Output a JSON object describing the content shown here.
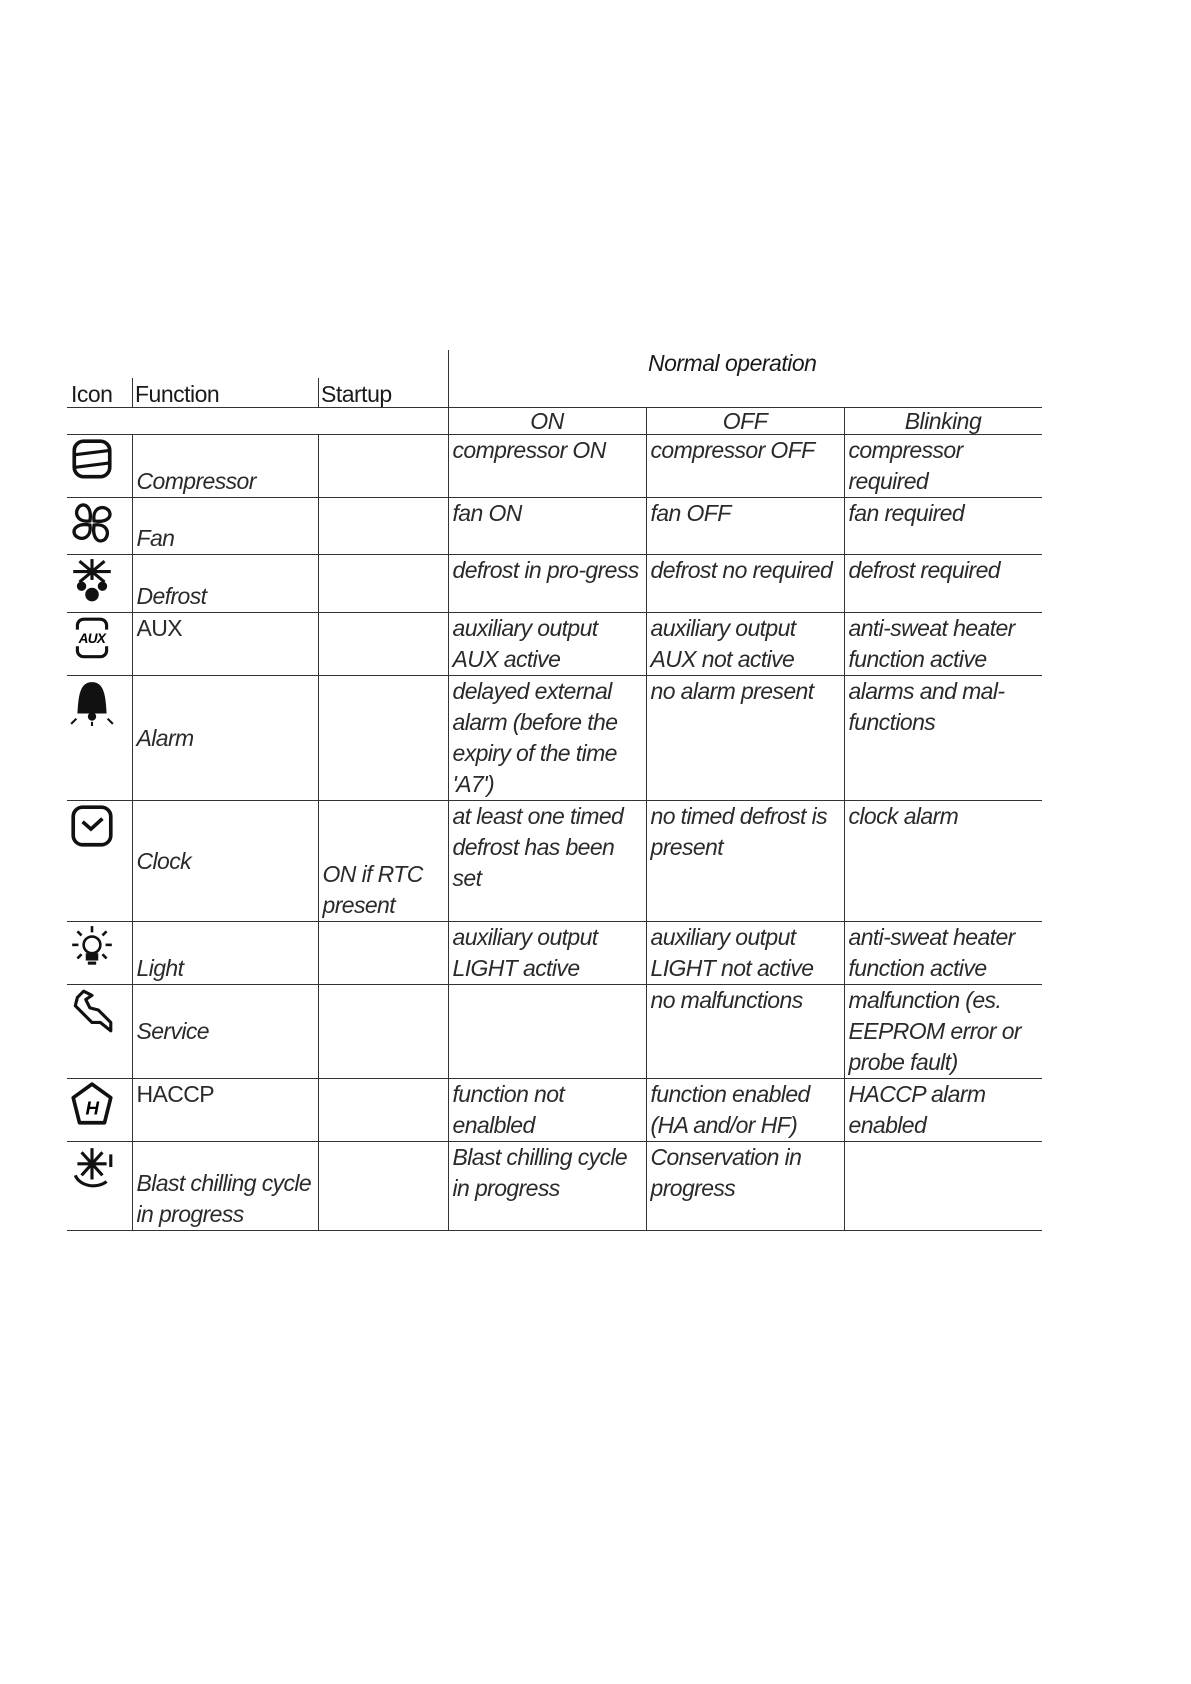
{
  "header": {
    "icon": "Icon",
    "function": "Function",
    "startup": "Startup",
    "normal_operation": "Normal operation",
    "on": "ON",
    "off": "OFF",
    "blinking": "Blinking"
  },
  "rows": [
    {
      "icon": "compressor-icon",
      "function": "Compressor",
      "startup": "",
      "on": "compressor ON",
      "off": "compressor OFF",
      "blinking": "compressor required"
    },
    {
      "icon": "fan-icon",
      "function": "Fan",
      "startup": "",
      "on": "fan ON",
      "off": "fan OFF",
      "blinking": "fan required"
    },
    {
      "icon": "defrost-icon",
      "function": "Defrost",
      "startup": "",
      "on": "defrost in pro-gress",
      "off": "defrost no required",
      "blinking": "defrost required"
    },
    {
      "icon": "aux-icon",
      "function": "AUX",
      "startup": "",
      "on": "auxiliary output AUX active",
      "off": "auxiliary output AUX not active",
      "blinking": " anti-sweat heater function active"
    },
    {
      "icon": "alarm-bell-icon",
      "function": "Alarm",
      "startup": "",
      "on": "delayed external alarm (before the expiry of the time 'A7')",
      "off": "no alarm present",
      "blinking": "alarms and mal-functions"
    },
    {
      "icon": "clock-icon",
      "function": "Clock",
      "startup": "ON if RTC present",
      "on": "at least one timed defrost has been set",
      "off": "no timed defrost is present",
      "blinking": "clock alarm"
    },
    {
      "icon": "light-bulb-icon",
      "function": "Light",
      "startup": "",
      "on": "auxiliary output LIGHT active",
      "off": "auxiliary output LIGHT not active",
      "blinking": " anti-sweat heater function active"
    },
    {
      "icon": "wrench-icon",
      "function": "Service",
      "startup": "",
      "on": "",
      "off": "no malfunctions",
      "blinking": "malfunction (es. EEPROM error or probe fault)"
    },
    {
      "icon": "haccp-icon",
      "function": "HACCP",
      "startup": "",
      "on": "function not enalbled",
      "off": " function enabled (HA and/or HF)",
      "blinking": "HACCP alarm enabled"
    },
    {
      "icon": "blast-chilling-icon",
      "function": "Blast chilling cycle in progress",
      "startup": "",
      "on": "Blast chilling cycle in progress",
      "off": "Conservation in progress",
      "blinking": ""
    }
  ]
}
